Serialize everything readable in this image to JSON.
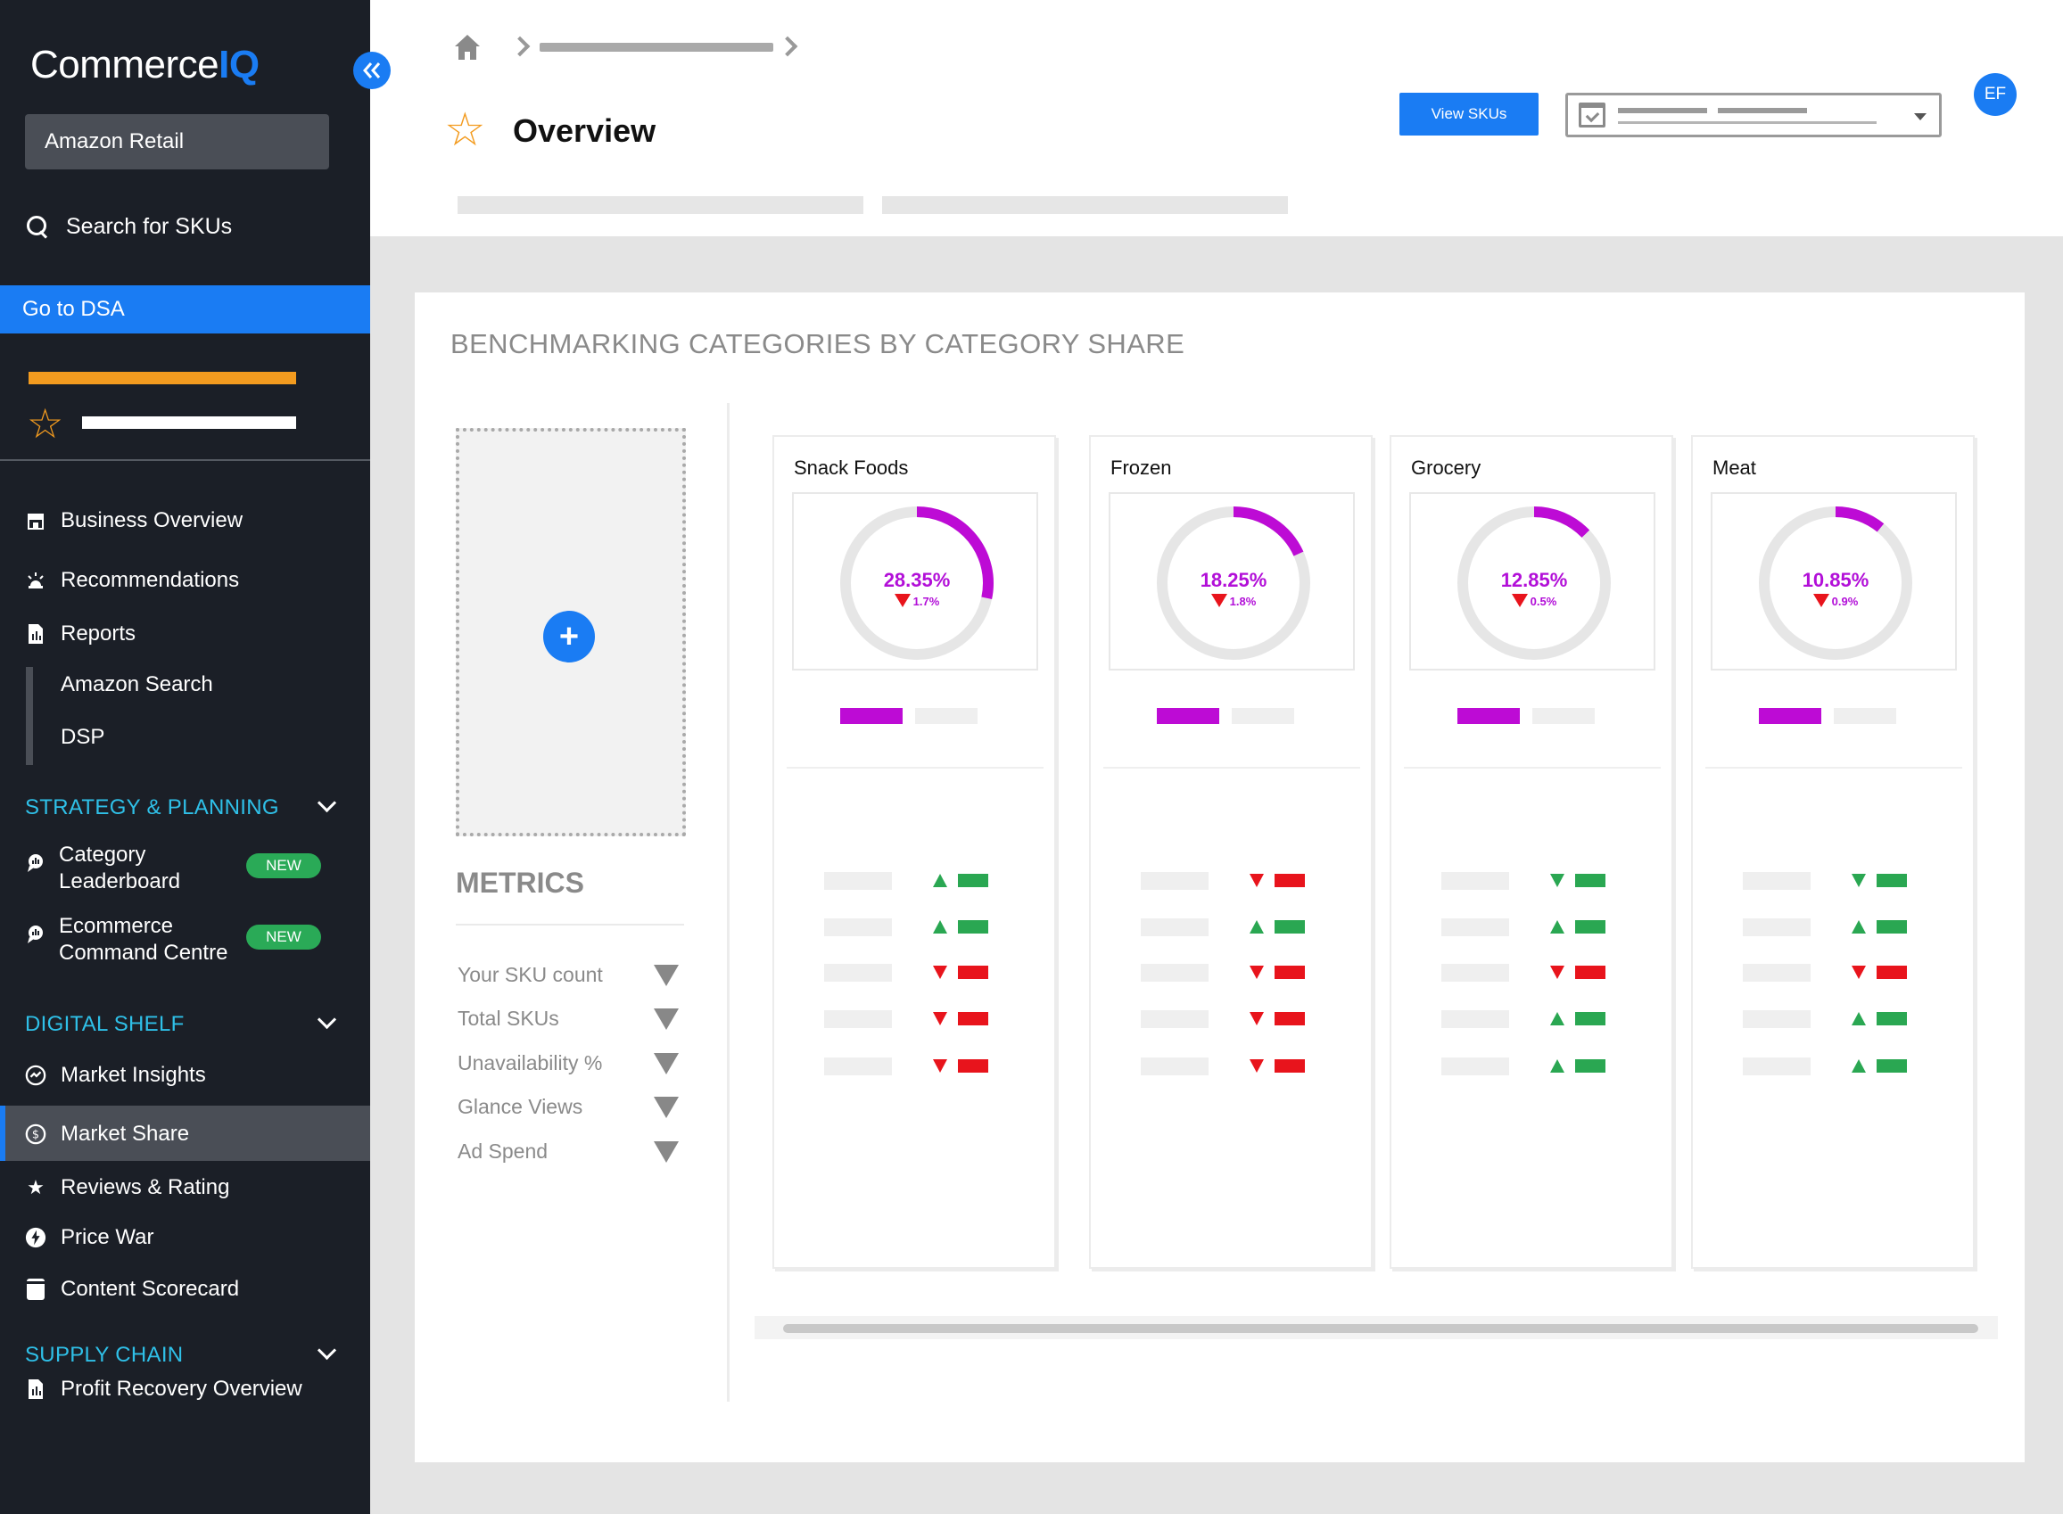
{
  "sidebar": {
    "logo_text": "Commerce",
    "logo_accent": "IQ",
    "collapse_icon": "double-chevron-left-icon",
    "retailer": "Amazon Retail",
    "search_label": "Search for SKUs",
    "dsa_label": "Go to DSA",
    "items": [
      {
        "label": "Business Overview",
        "icon": "store-icon"
      },
      {
        "label": "Recommendations",
        "icon": "alert-light-icon"
      },
      {
        "label": "Reports",
        "icon": "document-icon"
      }
    ],
    "report_subitems": [
      "Amazon Search",
      "DSP"
    ],
    "sections": {
      "strategy": {
        "title": "STRATEGY & PLANNING",
        "items": [
          {
            "label_line1": "Category",
            "label_line2": "Leaderboard",
            "badge": "NEW",
            "icon": "chat-icon"
          },
          {
            "label_line1": "Ecommerce",
            "label_line2": "Command Centre",
            "badge": "NEW",
            "icon": "chat-icon"
          }
        ]
      },
      "digital_shelf": {
        "title": "DIGITAL SHELF",
        "items": [
          {
            "label": "Market Insights",
            "icon": "insights-icon"
          },
          {
            "label": "Market Share",
            "icon": "dollar-circle-icon",
            "active": true
          },
          {
            "label": "Reviews & Rating",
            "icon": "star-icon"
          },
          {
            "label": "Price War",
            "icon": "bolt-icon"
          },
          {
            "label": "Content Scorecard",
            "icon": "scorecard-icon"
          }
        ]
      },
      "supply_chain": {
        "title": "SUPPLY CHAIN",
        "items": [
          {
            "label": "Profit Recovery Overview",
            "icon": "document-icon"
          }
        ]
      }
    }
  },
  "header": {
    "page_title": "Overview",
    "view_skus_label": "View SKUs",
    "avatar_initials": "EF"
  },
  "panel": {
    "title": "BENCHMARKING CATEGORIES BY CATEGORY SHARE",
    "add_icon": "plus-icon",
    "metrics_title": "METRICS",
    "metrics": [
      "Your SKU count",
      "Total SKUs",
      "Unavailability %",
      "Glance Views",
      "Ad Spend"
    ],
    "categories": [
      {
        "name": "Snack Foods",
        "share_label": "28.35%",
        "share": 28.35,
        "delta_label": "1.7%",
        "rows": [
          "up",
          "up",
          "down",
          "down",
          "down"
        ]
      },
      {
        "name": "Frozen",
        "share_label": "18.25%",
        "share": 18.25,
        "delta_label": "1.8%",
        "rows": [
          "down",
          "up",
          "down",
          "down",
          "down"
        ]
      },
      {
        "name": "Grocery",
        "share_label": "12.85%",
        "share": 12.85,
        "delta_label": "0.5%",
        "rows": [
          "down-green",
          "up",
          "down",
          "up",
          "up"
        ]
      },
      {
        "name": "Meat",
        "share_label": "10.85%",
        "share": 10.85,
        "delta_label": "0.9%",
        "rows": [
          "down-green",
          "up",
          "down",
          "up",
          "up"
        ]
      }
    ]
  },
  "colors": {
    "sidebar_bg": "#1b1f27",
    "accent_blue": "#1a7cf3",
    "section_cyan": "#2fc0e8",
    "orange": "#f39b1f",
    "purple": "#bd0bd5",
    "green": "#2aa752",
    "red": "#e8141c"
  }
}
